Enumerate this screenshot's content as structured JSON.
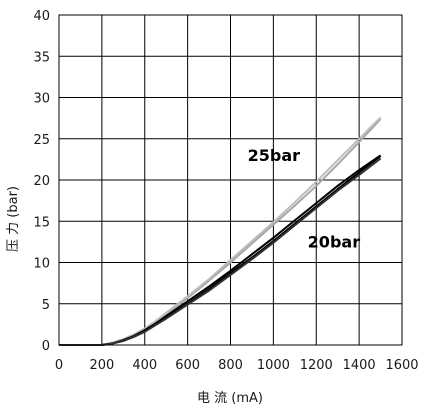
{
  "chart_data": {
    "type": "line",
    "xlabel": "电 流 (mA)",
    "ylabel": "压 力 (bar)",
    "xlim": [
      0,
      1600
    ],
    "ylim": [
      0,
      40
    ],
    "x_ticks": [
      "0",
      "200",
      "400",
      "600",
      "800",
      "1000",
      "1200",
      "1400",
      "1600"
    ],
    "y_ticks": [
      "0",
      "5",
      "10",
      "15",
      "20",
      "25",
      "30",
      "35",
      "40"
    ],
    "grid": true,
    "annotations": [
      {
        "text": "25bar",
        "x": 880,
        "y": 22.3
      },
      {
        "text": "20bar",
        "x": 1160,
        "y": 11.8
      }
    ],
    "series": [
      {
        "color": "#a6a6a6",
        "x": [
          0,
          200,
          250,
          300,
          350,
          400,
          450,
          500,
          600,
          700,
          800,
          900,
          1000,
          1100,
          1200,
          1300,
          1400,
          1500
        ],
        "y": [
          0,
          0,
          0.2,
          0.6,
          1.2,
          1.9,
          2.8,
          3.7,
          5.7,
          7.8,
          10.0,
          12.3,
          14.6,
          16.9,
          19.3,
          21.9,
          24.6,
          27.4
        ]
      },
      {
        "color": "#bdbdbd",
        "x": [
          0,
          200,
          250,
          300,
          350,
          400,
          450,
          500,
          600,
          700,
          800,
          900,
          1000,
          1100,
          1200,
          1300,
          1400,
          1500
        ],
        "y": [
          0,
          0,
          0.3,
          0.7,
          1.3,
          2.0,
          2.9,
          3.9,
          5.9,
          8.0,
          10.3,
          12.6,
          14.9,
          17.3,
          19.8,
          22.4,
          25.0,
          27.6
        ]
      },
      {
        "color": "#000000",
        "x": [
          0,
          200,
          250,
          300,
          350,
          400,
          450,
          500,
          600,
          700,
          800,
          900,
          1000,
          1100,
          1200,
          1300,
          1400,
          1500
        ],
        "y": [
          0,
          0,
          0.2,
          0.5,
          1.0,
          1.7,
          2.5,
          3.3,
          5.0,
          6.8,
          8.7,
          10.6,
          12.6,
          14.7,
          16.8,
          18.9,
          20.9,
          22.9
        ]
      },
      {
        "color": "#000000",
        "x": [
          0,
          200,
          250,
          300,
          350,
          400,
          450,
          500,
          600,
          700,
          800,
          900,
          1000,
          1100,
          1200,
          1300,
          1400,
          1500
        ],
        "y": [
          0,
          0,
          0.2,
          0.6,
          1.1,
          1.8,
          2.6,
          3.5,
          5.3,
          7.1,
          9.0,
          11.0,
          13.0,
          15.1,
          17.2,
          19.3,
          21.2,
          23.0
        ]
      },
      {
        "color": "#333333",
        "x": [
          0,
          200,
          250,
          300,
          350,
          400,
          450,
          500,
          600,
          700,
          800,
          900,
          1000,
          1100,
          1200,
          1300,
          1400,
          1500
        ],
        "y": [
          0,
          0,
          0.2,
          0.5,
          1.0,
          1.6,
          2.4,
          3.2,
          4.9,
          6.6,
          8.5,
          10.4,
          12.4,
          14.5,
          16.6,
          18.7,
          20.6,
          22.6
        ]
      }
    ]
  }
}
